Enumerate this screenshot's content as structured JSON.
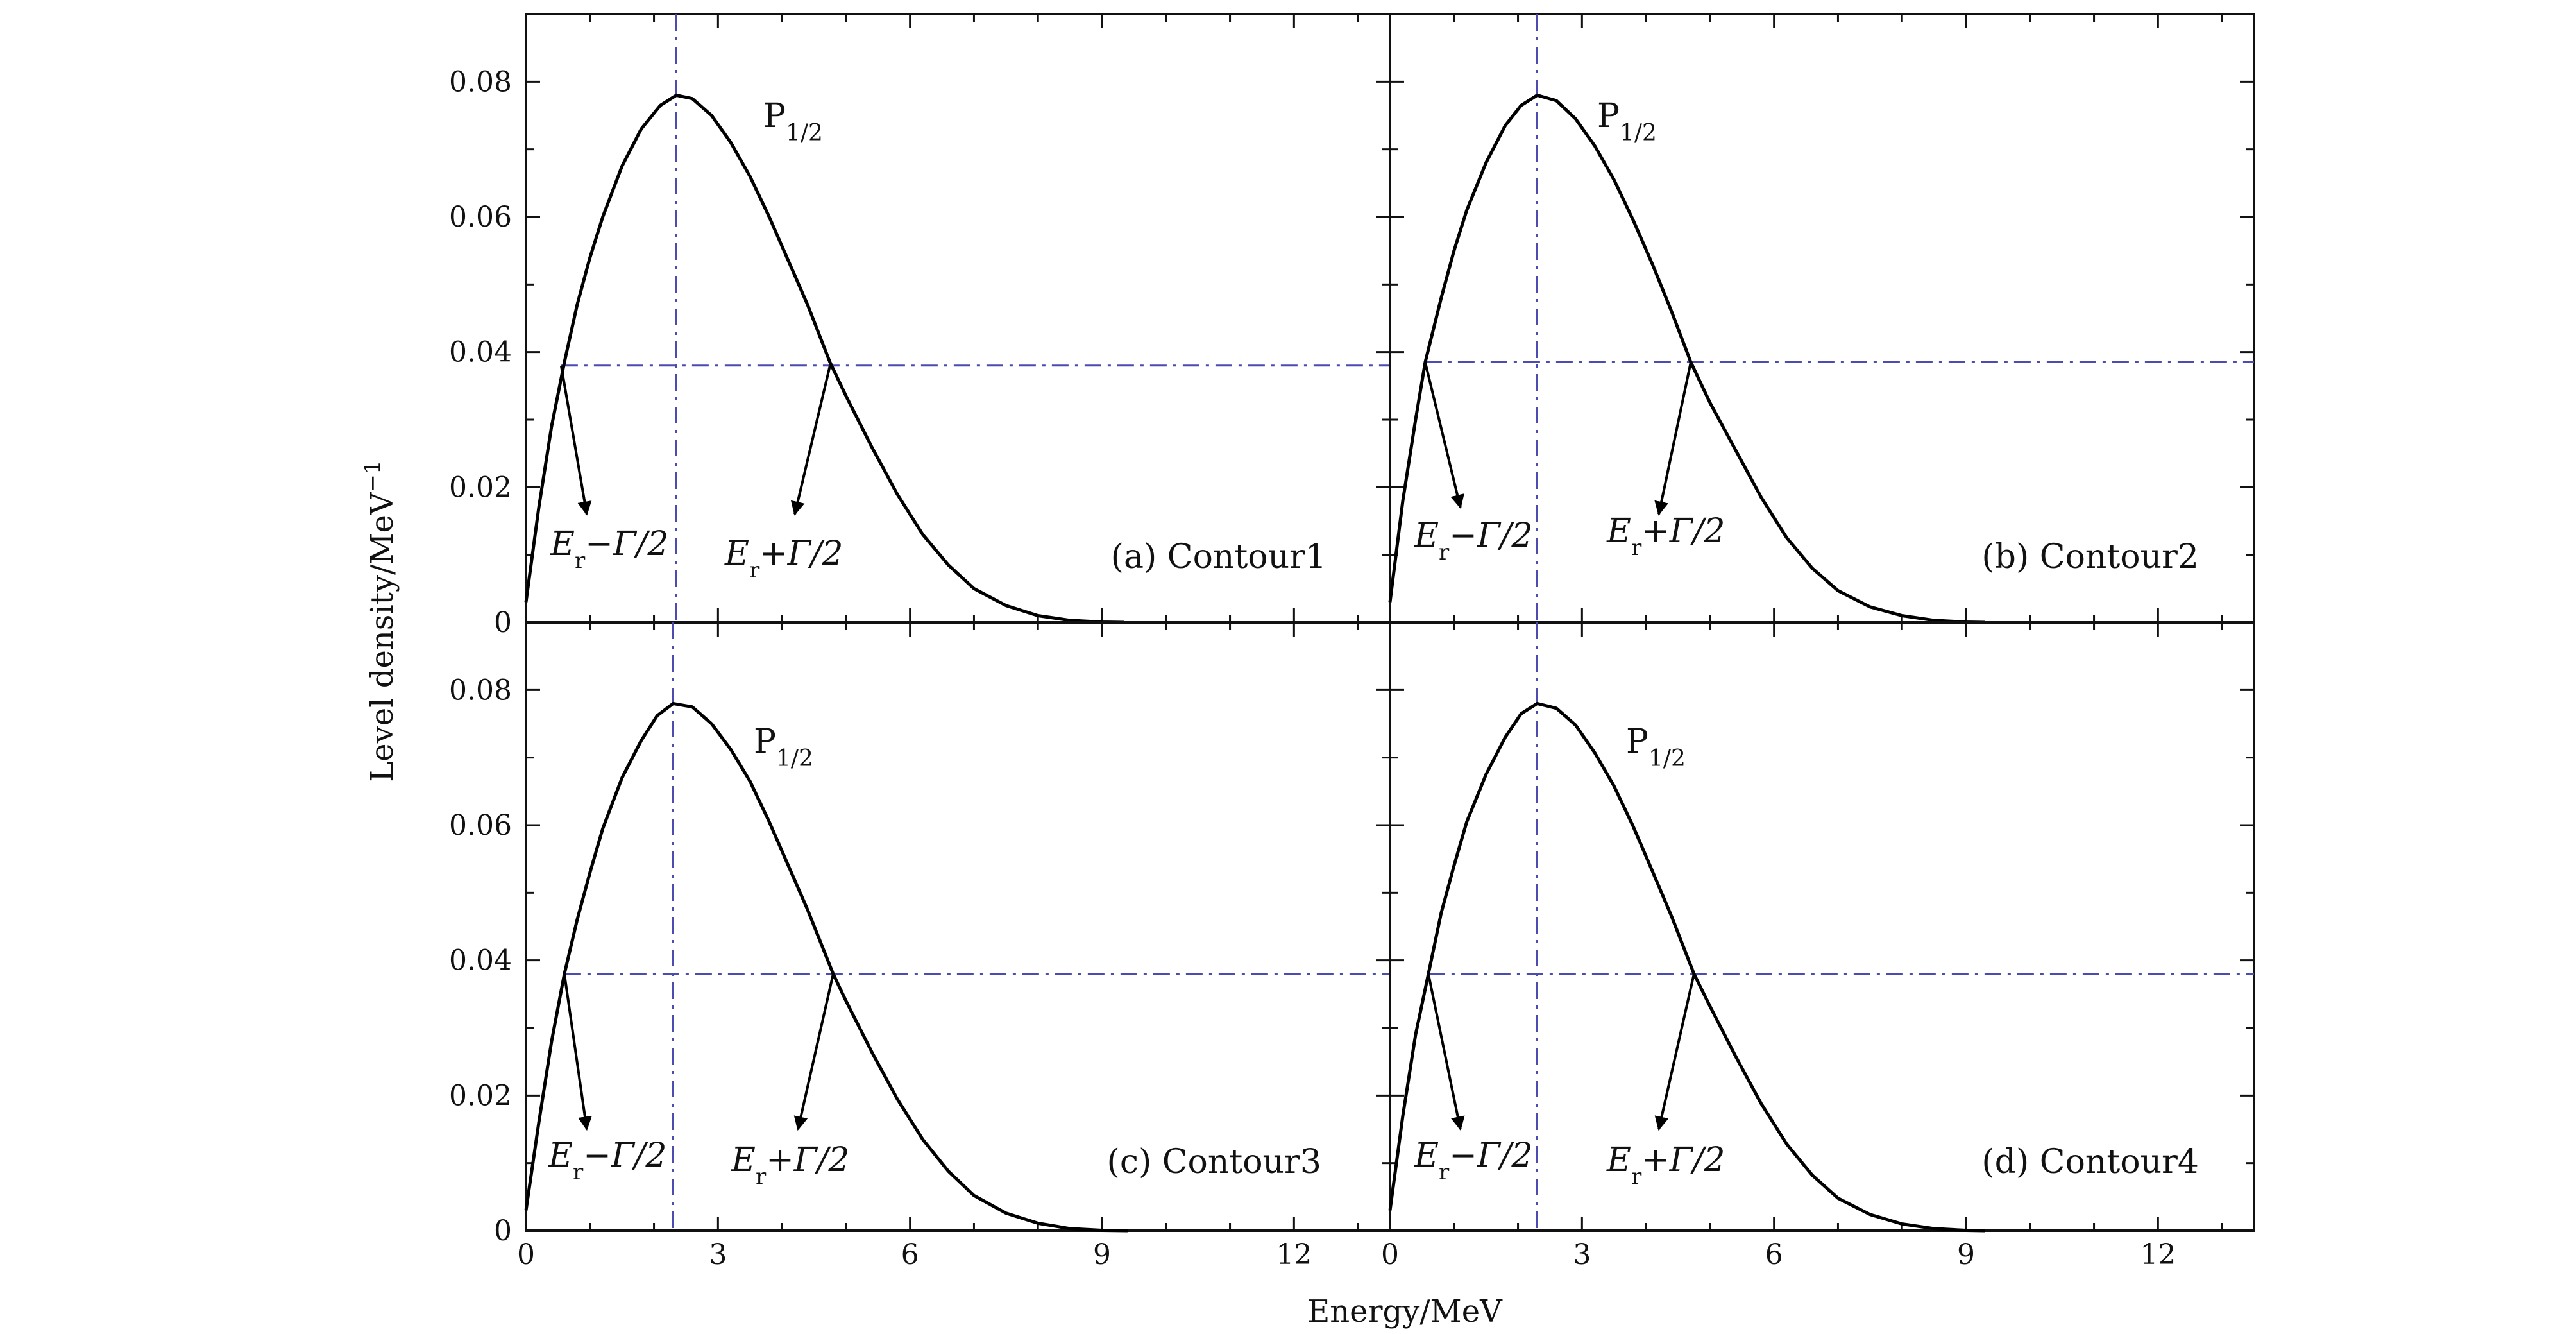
{
  "figure": {
    "xlabel": "Energy/MeV",
    "ylabel_base": "Level density/MeV",
    "ylabel_exponent": "−1"
  },
  "chart_data": [
    {
      "type": "line",
      "panel_label": "(a) Contour1",
      "peak_label": {
        "P": "P",
        "sub": "1/2"
      },
      "left_label": {
        "E": "E",
        "sub": "r",
        "rest": "−Γ/2"
      },
      "right_label": {
        "E": "E",
        "sub": "r",
        "rest": "+Γ/2"
      },
      "series": [
        {
          "peak_x": 2.35,
          "peak_y": 0.078,
          "zero_x": 9.35,
          "x": [
            0,
            0.2,
            0.4,
            0.6,
            0.8,
            1.0,
            1.2,
            1.5,
            1.8,
            2.1,
            2.35,
            2.6,
            2.9,
            3.2,
            3.5,
            3.8,
            4.1,
            4.4,
            4.75,
            5.0,
            5.4,
            5.8,
            6.2,
            6.6,
            7.0,
            7.5,
            8.0,
            8.5,
            9.0,
            9.35
          ],
          "y": [
            0.003,
            0.017,
            0.029,
            0.0385,
            0.047,
            0.054,
            0.06,
            0.0675,
            0.073,
            0.0765,
            0.078,
            0.0775,
            0.075,
            0.071,
            0.066,
            0.06,
            0.0535,
            0.047,
            0.0385,
            0.0335,
            0.026,
            0.019,
            0.013,
            0.0085,
            0.005,
            0.0025,
            0.001,
            0.0003,
            5e-05,
            0
          ]
        }
      ],
      "half_level": 0.038,
      "left_half_x": 0.55,
      "right_half_x": 4.75,
      "vline_x": 2.35,
      "left_arrow_to": [
        0.95,
        0.016
      ],
      "right_arrow_to": [
        4.2,
        0.016
      ],
      "xlim": [
        0,
        13.5
      ],
      "ylim": [
        0,
        0.09
      ],
      "xticks": [
        0,
        3,
        6,
        9,
        12
      ],
      "xtick_labels": [
        "0",
        "3",
        "6",
        "9",
        "12"
      ],
      "yticks": [
        0,
        0.02,
        0.04,
        0.06,
        0.08
      ],
      "ytick_labels": [
        "0",
        "0.02",
        "0.04",
        "0.06",
        "0.08"
      ],
      "colors": {
        "curve": "#000000",
        "guide": "#4b4bb0"
      }
    },
    {
      "type": "line",
      "panel_label": "(b) Contour2",
      "peak_label": {
        "P": "P",
        "sub": "1/2"
      },
      "left_label": {
        "E": "E",
        "sub": "r",
        "rest": "−Γ/2"
      },
      "right_label": {
        "E": "E",
        "sub": "r",
        "rest": "+Γ/2"
      },
      "series": [
        {
          "peak_x": 2.3,
          "peak_y": 0.078,
          "zero_x": 9.3,
          "x": [
            0,
            0.2,
            0.4,
            0.55,
            0.8,
            1.0,
            1.2,
            1.5,
            1.8,
            2.05,
            2.3,
            2.6,
            2.9,
            3.2,
            3.5,
            3.8,
            4.1,
            4.4,
            4.7,
            5.0,
            5.4,
            5.8,
            6.2,
            6.6,
            7.0,
            7.5,
            8.0,
            8.5,
            9.0,
            9.3
          ],
          "y": [
            0.003,
            0.018,
            0.03,
            0.0385,
            0.048,
            0.055,
            0.061,
            0.068,
            0.0735,
            0.0765,
            0.078,
            0.0772,
            0.0745,
            0.0705,
            0.0655,
            0.0595,
            0.053,
            0.046,
            0.0385,
            0.0325,
            0.0255,
            0.0185,
            0.0125,
            0.008,
            0.0047,
            0.0023,
            0.001,
            0.0003,
            5e-05,
            0
          ]
        }
      ],
      "half_level": 0.0385,
      "left_half_x": 0.55,
      "right_half_x": 4.7,
      "vline_x": 2.3,
      "left_arrow_to": [
        1.1,
        0.017
      ],
      "right_arrow_to": [
        4.2,
        0.016
      ],
      "xlim": [
        0,
        13.5
      ],
      "ylim": [
        0,
        0.09
      ],
      "xticks": [
        0,
        3,
        6,
        9,
        12
      ],
      "xtick_labels": [
        "0",
        "3",
        "6",
        "9",
        "12"
      ],
      "yticks": [
        0,
        0.02,
        0.04,
        0.06,
        0.08
      ],
      "ytick_labels": [
        "0",
        "0.02",
        "0.04",
        "0.06",
        "0.08"
      ],
      "colors": {
        "curve": "#000000",
        "guide": "#4b4bb0"
      }
    },
    {
      "type": "line",
      "panel_label": "(c) Contour3",
      "peak_label": {
        "P": "P",
        "sub": "1/2"
      },
      "left_label": {
        "E": "E",
        "sub": "r",
        "rest": "−Γ/2"
      },
      "right_label": {
        "E": "E",
        "sub": "r",
        "rest": "+Γ/2"
      },
      "series": [
        {
          "peak_x": 2.3,
          "peak_y": 0.078,
          "zero_x": 9.4,
          "x": [
            0,
            0.2,
            0.4,
            0.6,
            0.8,
            1.0,
            1.2,
            1.5,
            1.8,
            2.05,
            2.3,
            2.6,
            2.9,
            3.2,
            3.5,
            3.8,
            4.1,
            4.4,
            4.8,
            5.0,
            5.4,
            5.8,
            6.2,
            6.6,
            7.0,
            7.5,
            8.0,
            8.5,
            9.0,
            9.4
          ],
          "y": [
            0.003,
            0.016,
            0.028,
            0.038,
            0.046,
            0.053,
            0.0595,
            0.067,
            0.0725,
            0.0762,
            0.078,
            0.0775,
            0.075,
            0.0712,
            0.0665,
            0.0605,
            0.054,
            0.0475,
            0.038,
            0.034,
            0.0265,
            0.0195,
            0.0135,
            0.0088,
            0.0052,
            0.0026,
            0.0011,
            0.0003,
            5e-05,
            0
          ]
        }
      ],
      "half_level": 0.038,
      "left_half_x": 0.6,
      "right_half_x": 4.8,
      "vline_x": 2.3,
      "left_arrow_to": [
        0.95,
        0.015
      ],
      "right_arrow_to": [
        4.25,
        0.015
      ],
      "xlim": [
        0,
        13.5
      ],
      "ylim": [
        0,
        0.09
      ],
      "xticks": [
        0,
        3,
        6,
        9,
        12
      ],
      "xtick_labels": [
        "0",
        "3",
        "6",
        "9",
        "12"
      ],
      "yticks": [
        0,
        0.02,
        0.04,
        0.06,
        0.08
      ],
      "ytick_labels": [
        "0",
        "0.02",
        "0.04",
        "0.06",
        "0.08"
      ],
      "colors": {
        "curve": "#000000",
        "guide": "#4b4bb0"
      }
    },
    {
      "type": "line",
      "panel_label": "(d) Contour4",
      "peak_label": {
        "P": "P",
        "sub": "1/2"
      },
      "left_label": {
        "E": "E",
        "sub": "r",
        "rest": "−Γ/2"
      },
      "right_label": {
        "E": "E",
        "sub": "r",
        "rest": "+Γ/2"
      },
      "series": [
        {
          "peak_x": 2.3,
          "peak_y": 0.078,
          "zero_x": 9.3,
          "x": [
            0,
            0.2,
            0.4,
            0.6,
            0.8,
            1.0,
            1.2,
            1.5,
            1.8,
            2.05,
            2.3,
            2.6,
            2.9,
            3.2,
            3.5,
            3.8,
            4.1,
            4.4,
            4.75,
            5.0,
            5.4,
            5.8,
            6.2,
            6.6,
            7.0,
            7.5,
            8.0,
            8.5,
            9.0,
            9.3
          ],
          "y": [
            0.003,
            0.017,
            0.029,
            0.038,
            0.047,
            0.054,
            0.0605,
            0.0675,
            0.073,
            0.0765,
            0.078,
            0.0773,
            0.0748,
            0.0707,
            0.0658,
            0.0598,
            0.0532,
            0.0465,
            0.038,
            0.0332,
            0.0258,
            0.0188,
            0.0128,
            0.0082,
            0.0048,
            0.0024,
            0.001,
            0.0003,
            5e-05,
            0
          ]
        }
      ],
      "half_level": 0.038,
      "left_half_x": 0.6,
      "right_half_x": 4.75,
      "vline_x": 2.3,
      "left_arrow_to": [
        1.1,
        0.015
      ],
      "right_arrow_to": [
        4.2,
        0.015
      ],
      "xlim": [
        0,
        13.5
      ],
      "ylim": [
        0,
        0.09
      ],
      "xticks": [
        0,
        3,
        6,
        9,
        12
      ],
      "xtick_labels": [
        "0",
        "3",
        "6",
        "9",
        "12"
      ],
      "yticks": [
        0,
        0.02,
        0.04,
        0.06,
        0.08
      ],
      "ytick_labels": [
        "0",
        "0.02",
        "0.04",
        "0.06",
        "0.08"
      ],
      "colors": {
        "curve": "#000000",
        "guide": "#4b4bb0"
      }
    }
  ]
}
